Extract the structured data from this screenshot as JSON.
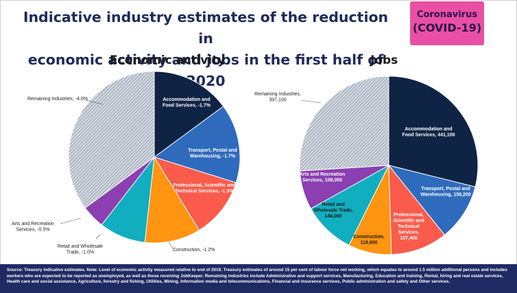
{
  "title_line1": "Indicative industry estimates of the reduction in",
  "title_line2": "economic activity and jobs in the first half of 2020",
  "badge": {
    "line1": "Coronavirus",
    "line2": "(COVID-19)"
  },
  "footer_text": "Source: Treasury indicative estimates.  Note: Level of economic activity measured relative to end of 2019. Treasury estimates of around 15 per cent of labour force not working, which equates to around 1.5 million additional persons and includes workers who are expected to be reported as unemployed, as well as those receiving JobKeeper. Remaining industries include Administrative and support services, Manufacturing, Education and training, Rental, hiring and real estate services, Health care and social assistance, Agriculture, forestry and fishing, Utilities, Mining, Information media and telecommunications, Financial and insurance services, Public administration and safety and Other services.",
  "colors": {
    "accommodation": "#0f2444",
    "transport": "#2f6bbd",
    "professional": "#fb5b4b",
    "construction": "#ff9510",
    "retail": "#11aebf",
    "arts": "#8b3fb0",
    "remaining_fill": "#d2d8e0",
    "remaining_hatch": "#8a95a5"
  },
  "chart_data": [
    {
      "type": "pie",
      "title": "Economic activity",
      "start": "12 o'clock, clockwise",
      "slices": [
        {
          "key": "accommodation",
          "label": "Accommodation and Food Services, -1.7%",
          "value": 1.7
        },
        {
          "key": "transport",
          "label": "Transport, Postal and Warehousing, -1.7%",
          "value": 1.7
        },
        {
          "key": "professional",
          "label": "Professional, Scientific and Technical Services, -1.3%",
          "value": 1.3
        },
        {
          "key": "construction",
          "label": "Construction,  -1.2%",
          "value": 1.2
        },
        {
          "key": "retail",
          "label": "Retail and Wholesale Trade,  -1.0%",
          "value": 1.0
        },
        {
          "key": "arts",
          "label": "Arts and Recreation Services, -0.5%",
          "value": 0.5
        },
        {
          "key": "remaining",
          "label": "Remaining Industries,  -4.0%",
          "value": 4.0
        }
      ]
    },
    {
      "type": "pie",
      "title": "Jobs",
      "start": "12 o'clock, clockwise",
      "slices": [
        {
          "key": "accommodation",
          "label": "Accommodation and Food Services, 441,100",
          "value": 441100
        },
        {
          "key": "transport",
          "label": "Transport, Postal and Warehousing, 158,200",
          "value": 158200
        },
        {
          "key": "professional",
          "label": "Professional, Scientific and Technical Services, 157,400",
          "value": 157400
        },
        {
          "key": "construction",
          "label": "Construction, 119,600",
          "value": 119600
        },
        {
          "key": "retail",
          "label": "Retail and Wholesale Trade, 146,000",
          "value": 146000
        },
        {
          "key": "arts",
          "label": "Arts and Recreation Services, 108,000",
          "value": 108000
        },
        {
          "key": "remaining",
          "label": "Remaining Industries, 397,100",
          "value": 397100
        }
      ]
    }
  ]
}
